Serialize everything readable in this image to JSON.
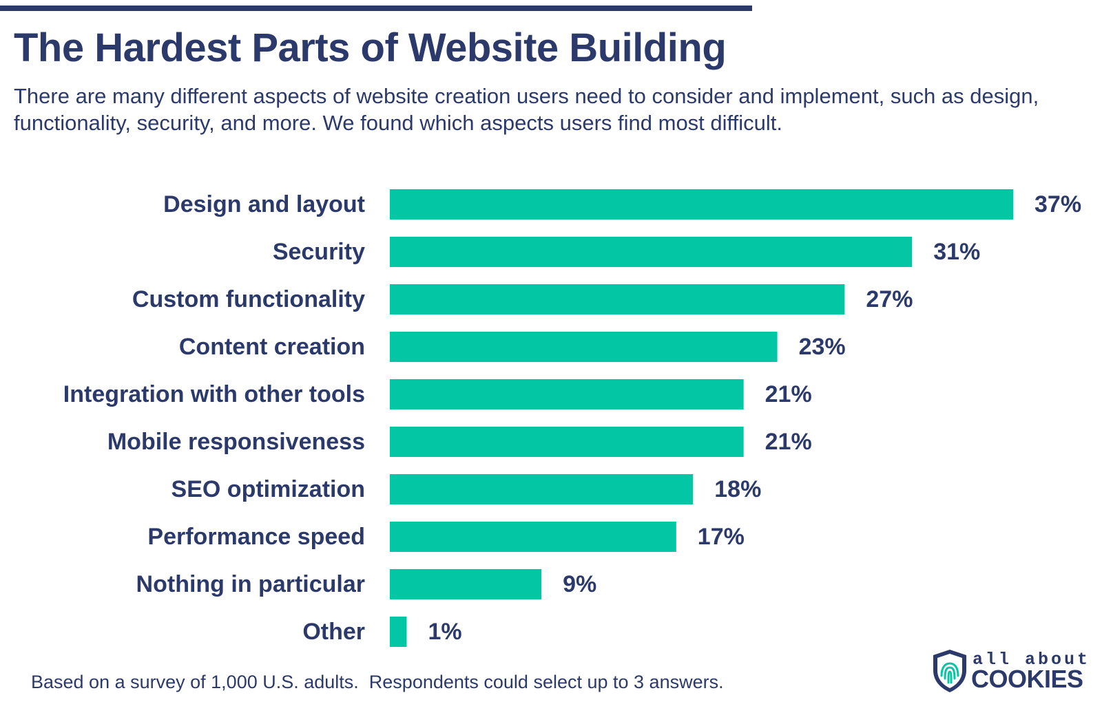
{
  "header": {
    "title": "The Hardest Parts of Website Building",
    "subtitle": "There are many different aspects of website creation users need to consider and implement, such as design, functionality, security, and more. We found which aspects users find most difficult."
  },
  "chart_data": {
    "type": "bar",
    "orientation": "horizontal",
    "categories": [
      "Design and layout",
      "Security",
      "Custom functionality",
      "Content creation",
      "Integration with other tools",
      "Mobile responsiveness",
      "SEO optimization",
      "Performance speed",
      "Nothing in particular",
      "Other"
    ],
    "values": [
      37,
      31,
      27,
      23,
      21,
      21,
      18,
      17,
      9,
      1
    ],
    "value_labels": [
      "37%",
      "31%",
      "27%",
      "23%",
      "21%",
      "21%",
      "18%",
      "17%",
      "9%",
      "1%"
    ],
    "xlim": [
      0,
      37
    ],
    "bar_color": "#03c6a4",
    "label_color": "#2b3a6b",
    "grid": false
  },
  "footnote": "Based on a survey of 1,000 U.S. adults.  Respondents could select up to 3 answers.",
  "logo": {
    "line1": "all about",
    "line2": "COOKIES",
    "icon": "fingerprint-shield-icon"
  },
  "colors": {
    "primary": "#2b3a6b",
    "accent": "#03c6a4"
  }
}
